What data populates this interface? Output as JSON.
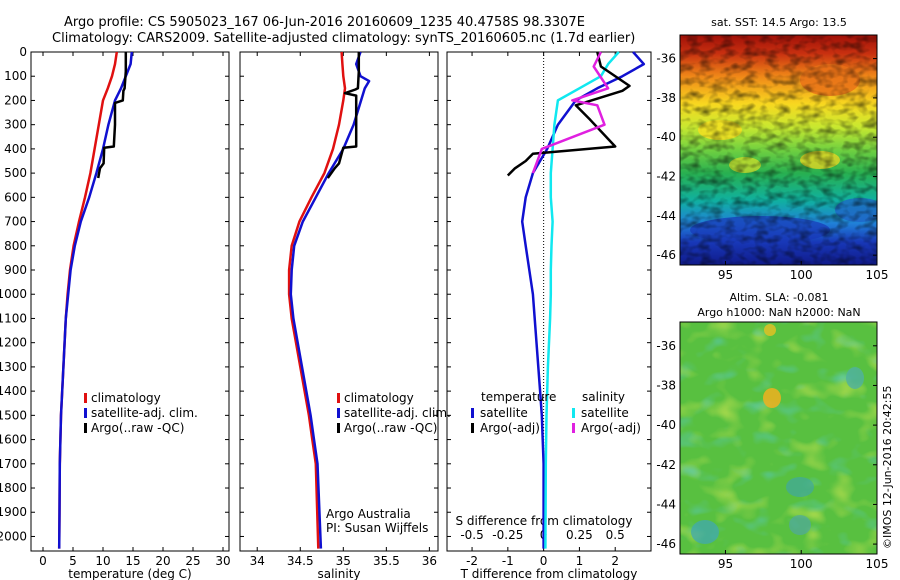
{
  "header": {
    "line1": "Argo profile: CS 5905023_167 06-Jun-2016 20160609_1235 40.4758S 98.3307E",
    "line2": "Climatology: CARS2009. Satellite-adjusted climatology: synTS_20160605.nc (1.7d earlier)"
  },
  "credit": "©IMOS 12-Jun-2016 20:42:55",
  "colors": {
    "climatology": "#e01010",
    "satellite": "#1010d0",
    "argo": "#000000",
    "salinity_satellite": "#10e8f0",
    "salinity_argo": "#e020e0"
  },
  "chart_data": [
    {
      "type": "line",
      "id": "temperature",
      "xlabel": "temperature (deg C)",
      "xlim": [
        -2,
        31
      ],
      "ylim": [
        2060,
        0
      ],
      "xticks": [
        "0",
        "5",
        "10",
        "15",
        "20",
        "25",
        "30"
      ],
      "xtick_values": [
        0,
        5,
        10,
        15,
        20,
        25,
        30
      ],
      "yticks": [
        "0",
        "100",
        "200",
        "300",
        "400",
        "500",
        "600",
        "700",
        "800",
        "900",
        "1000",
        "1100",
        "1200",
        "1300",
        "1400",
        "1500",
        "1600",
        "1700",
        "1800",
        "1900",
        "2000"
      ],
      "ytick_values": [
        0,
        100,
        200,
        300,
        400,
        500,
        600,
        700,
        800,
        900,
        1000,
        1100,
        1200,
        1300,
        1400,
        1500,
        1600,
        1700,
        1800,
        1900,
        2000
      ],
      "legend": [
        "climatology",
        "satellite-adj. clim.",
        "Argo(..raw -QC)"
      ],
      "series": [
        {
          "name": "climatology",
          "color_key": "climatology",
          "x": [
            12.3,
            12.0,
            11.5,
            10.8,
            10.0,
            9.3,
            8.6,
            7.9,
            7.0,
            6.0,
            5.1,
            4.5,
            4.1,
            3.8,
            3.6,
            3.4,
            3.2,
            3.0,
            2.9,
            2.8,
            2.75,
            2.7
          ],
          "y": [
            0,
            50,
            100,
            150,
            200,
            300,
            400,
            500,
            600,
            700,
            800,
            900,
            1000,
            1100,
            1200,
            1300,
            1400,
            1500,
            1600,
            1700,
            1900,
            2050
          ]
        },
        {
          "name": "satellite-adj. clim.",
          "color_key": "satellite",
          "x": [
            14.8,
            14.6,
            13.8,
            13.0,
            12.0,
            10.9,
            10.0,
            8.9,
            7.7,
            6.3,
            5.3,
            4.6,
            4.2,
            3.8,
            3.6,
            3.4,
            3.2,
            3.0,
            2.9,
            2.8,
            2.75,
            2.7
          ],
          "y": [
            0,
            50,
            100,
            150,
            200,
            300,
            400,
            500,
            600,
            700,
            800,
            900,
            1000,
            1100,
            1200,
            1300,
            1400,
            1500,
            1600,
            1700,
            1900,
            2050
          ]
        },
        {
          "name": "Argo(..raw -QC)",
          "color_key": "argo",
          "x": [
            13.8,
            13.8,
            13.6,
            13.4,
            13.3,
            12.0,
            12.0,
            11.8,
            10.2,
            10.1,
            9.5,
            9.2
          ],
          "y": [
            0,
            80,
            150,
            160,
            200,
            210,
            300,
            390,
            395,
            460,
            480,
            520
          ]
        }
      ]
    },
    {
      "type": "line",
      "id": "salinity",
      "xlabel": "salinity",
      "xlim": [
        33.8,
        36.1
      ],
      "ylim": [
        2060,
        0
      ],
      "xticks": [
        "34",
        "34.5",
        "35",
        "35.5",
        "36"
      ],
      "xtick_values": [
        34,
        34.5,
        35,
        35.5,
        36
      ],
      "legend": [
        "climatology",
        "satellite-adj. clim.",
        "Argo(..raw -QC)"
      ],
      "annotation": [
        "Argo Australia",
        "PI: Susan Wijffels"
      ],
      "series": [
        {
          "name": "climatology",
          "color_key": "climatology",
          "x": [
            34.98,
            34.99,
            35.0,
            35.02,
            35.0,
            34.95,
            34.88,
            34.78,
            34.63,
            34.49,
            34.4,
            34.37,
            34.37,
            34.4,
            34.45,
            34.5,
            34.55,
            34.6,
            34.64,
            34.68,
            34.71
          ],
          "y": [
            0,
            50,
            100,
            150,
            200,
            300,
            400,
            500,
            600,
            700,
            800,
            900,
            1000,
            1100,
            1200,
            1300,
            1400,
            1500,
            1600,
            1700,
            2050
          ]
        },
        {
          "name": "satellite-adj. clim.",
          "color_key": "satellite",
          "x": [
            35.2,
            35.15,
            35.2,
            35.3,
            35.25,
            35.12,
            35.0,
            34.83,
            34.68,
            34.53,
            34.43,
            34.4,
            34.39,
            34.42,
            34.47,
            34.52,
            34.57,
            34.62,
            34.66,
            34.7,
            34.74
          ],
          "y": [
            0,
            50,
            100,
            120,
            150,
            300,
            400,
            500,
            600,
            700,
            800,
            900,
            1000,
            1100,
            1200,
            1300,
            1400,
            1500,
            1600,
            1700,
            2050
          ]
        },
        {
          "name": "Argo(..raw -QC)",
          "color_key": "argo",
          "x": [
            35.18,
            35.18,
            35.17,
            35.14,
            35.02,
            35.15,
            35.15,
            35.0,
            34.95,
            34.9,
            34.82
          ],
          "y": [
            0,
            80,
            150,
            155,
            170,
            180,
            390,
            395,
            460,
            480,
            520
          ]
        }
      ]
    },
    {
      "type": "line",
      "id": "difference",
      "xlabel": "T difference from climatology",
      "xlim": [
        -2.7,
        3.0
      ],
      "ylim": [
        2060,
        0
      ],
      "xticks": [
        "-2",
        "-1",
        "0",
        "1",
        "2"
      ],
      "xtick_values": [
        -2,
        -1,
        0,
        1,
        2
      ],
      "x2label": "S difference from climatology",
      "x2ticks": [
        "-0.5",
        "-0.25",
        "0",
        "0.25",
        "0.5"
      ],
      "x2tick_values": [
        -0.5,
        -0.25,
        0,
        0.25,
        0.5
      ],
      "x2_scale": 4,
      "legend_left": [
        "temperature",
        "satellite",
        "Argo(-adj)"
      ],
      "legend_right": [
        "salinity",
        "satellite",
        "Argo(-adj)"
      ],
      "series": [
        {
          "name": "temperature satellite",
          "color_key": "satellite",
          "x": [
            2.5,
            2.8,
            2.2,
            1.5,
            0.9,
            0.4,
            0.1,
            -0.3,
            -0.5,
            -0.6,
            -0.5,
            -0.4,
            -0.3,
            -0.25,
            -0.2,
            -0.15,
            -0.1,
            -0.05,
            0.0,
            0.0
          ],
          "y": [
            0,
            50,
            100,
            150,
            200,
            300,
            400,
            500,
            600,
            700,
            800,
            900,
            1000,
            1100,
            1200,
            1300,
            1400,
            1500,
            1700,
            2050
          ]
        },
        {
          "name": "salinity satellite",
          "color_key": "salinity_satellite",
          "x": [
            2.1,
            1.8,
            1.6,
            1.0,
            0.4,
            0.3,
            0.25,
            0.2,
            0.2,
            0.25,
            0.22,
            0.2,
            0.2,
            0.18,
            0.15,
            0.12,
            0.1,
            0.08,
            0.06,
            0.05
          ],
          "y": [
            0,
            50,
            100,
            150,
            200,
            300,
            400,
            500,
            600,
            700,
            800,
            900,
            1000,
            1100,
            1200,
            1300,
            1400,
            1500,
            1700,
            2050
          ]
        },
        {
          "name": "temperature Argo(-adj)",
          "color_key": "argo",
          "x": [
            1.5,
            1.6,
            2.4,
            2.2,
            0.9,
            1.3,
            2.0,
            -0.3,
            -0.5,
            -0.8,
            -1.0
          ],
          "y": [
            0,
            60,
            140,
            160,
            220,
            280,
            390,
            420,
            450,
            480,
            510
          ]
        },
        {
          "name": "salinity Argo(-adj)",
          "color_key": "salinity_argo",
          "x": [
            1.6,
            1.4,
            1.8,
            0.8,
            1.5,
            1.7,
            -0.05,
            -0.2,
            -0.3
          ],
          "y": [
            0,
            60,
            150,
            200,
            220,
            300,
            400,
            460,
            500
          ]
        }
      ]
    },
    {
      "type": "heatmap",
      "id": "sst-map",
      "title": "sat. SST: 14.5 Argo: 13.5",
      "xticks": [
        "95",
        "100",
        "105"
      ],
      "xtick_values": [
        95,
        100,
        105
      ],
      "yticks": [
        "-36",
        "-38",
        "-40",
        "-42",
        "-44",
        "-46"
      ],
      "ytick_values": [
        -36,
        -38,
        -40,
        -42,
        -44,
        -46
      ],
      "xlim": [
        92,
        105
      ],
      "ylim": [
        -46.5,
        -34.8
      ]
    },
    {
      "type": "heatmap",
      "id": "sla-map",
      "title": [
        "Altim. SLA: -0.081",
        "Argo h1000: NaN h2000: NaN"
      ],
      "xticks": [
        "95",
        "100",
        "105"
      ],
      "xtick_values": [
        95,
        100,
        105
      ],
      "yticks": [
        "-36",
        "-38",
        "-40",
        "-42",
        "-44",
        "-46"
      ],
      "ytick_values": [
        -36,
        -38,
        -40,
        -42,
        -44,
        -46
      ],
      "xlim": [
        92,
        105
      ],
      "ylim": [
        -46.5,
        -34.8
      ]
    }
  ]
}
